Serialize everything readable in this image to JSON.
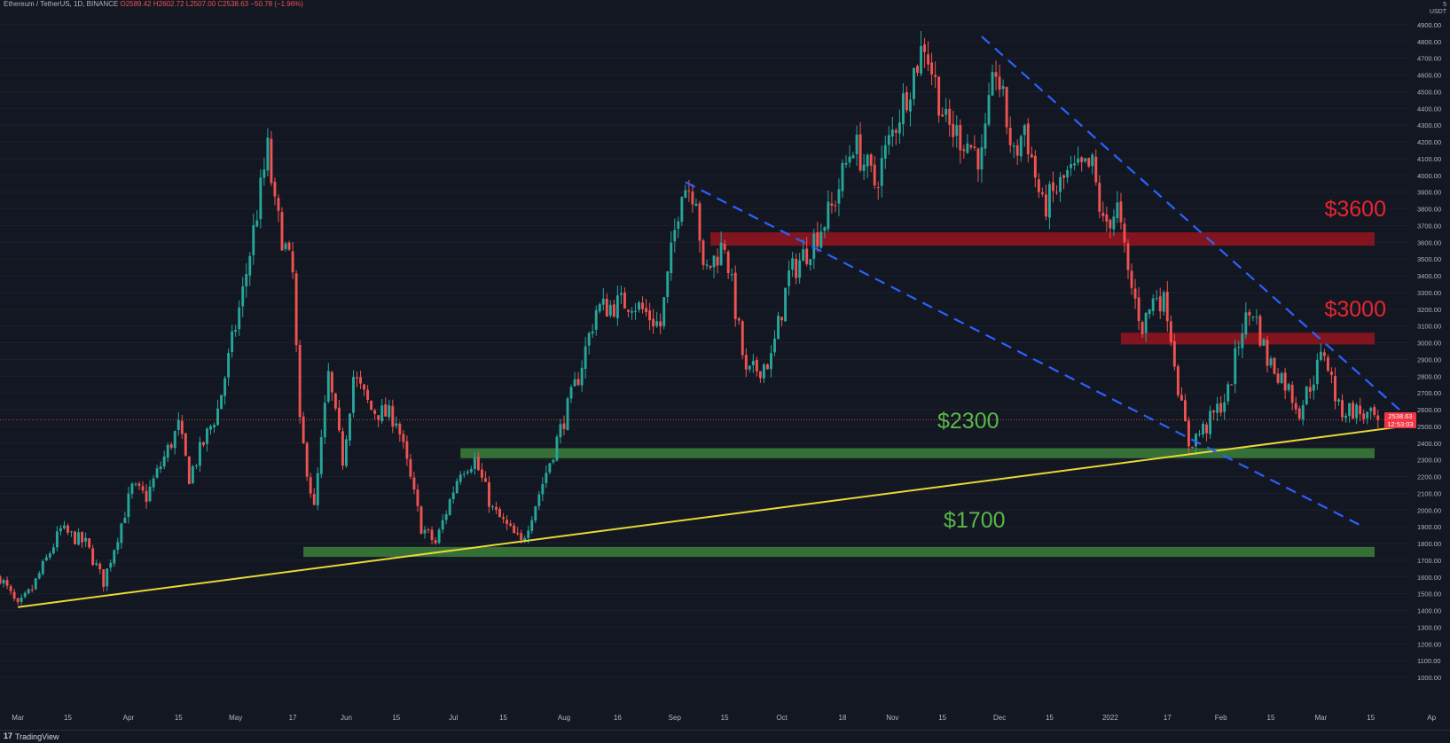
{
  "header": {
    "symbol": "Ethereum / TetherUS, 1D, BINANCE",
    "open": "O2589.42",
    "high": "H2602.72",
    "low": "L2507.00",
    "close": "C2538.63",
    "change": "−50.78 (−1.96%)"
  },
  "axis_top": {
    "icon": "5",
    "unit": "USDT"
  },
  "current_price": {
    "value": "2538.63",
    "countdown": "12:53:03"
  },
  "footer": {
    "logo": "17",
    "brand": "TradingView"
  },
  "colors": {
    "background": "#131722",
    "up": "#26a69a",
    "down": "#ef5350",
    "support_zone": "#3a7a3a",
    "resistance_zone": "#8b1520",
    "trendline": "#e8d837",
    "channel": "#2962ff"
  },
  "chart_data": {
    "type": "candlestick",
    "y_axis": {
      "min": 1000,
      "max": 4900,
      "step": 100,
      "tick_labels": [
        "4900.00",
        "4800.00",
        "4700.00",
        "4600.00",
        "4500.00",
        "4400.00",
        "4300.00",
        "4200.00",
        "4100.00",
        "4000.00",
        "3900.00",
        "3800.00",
        "3700.00",
        "3600.00",
        "3500.00",
        "3400.00",
        "3300.00",
        "3200.00",
        "3100.00",
        "3000.00",
        "2900.00",
        "2800.00",
        "2700.00",
        "2600.00",
        "2500.00",
        "2400.00",
        "2300.00",
        "2200.00",
        "2100.00",
        "2000.00",
        "1900.00",
        "1800.00",
        "1700.00",
        "1600.00",
        "1500.00",
        "1400.00",
        "1300.00",
        "1200.00",
        "1100.00",
        "1000.00"
      ]
    },
    "x_axis": {
      "range": [
        "2021-02-24",
        "2022-03-26"
      ],
      "tick_labels": [
        {
          "date": "2021-03-01",
          "label": "Mar"
        },
        {
          "date": "2021-03-15",
          "label": "15"
        },
        {
          "date": "2021-04-01",
          "label": "Apr"
        },
        {
          "date": "2021-04-15",
          "label": "15"
        },
        {
          "date": "2021-05-01",
          "label": "May"
        },
        {
          "date": "2021-05-17",
          "label": "17"
        },
        {
          "date": "2021-06-01",
          "label": "Jun"
        },
        {
          "date": "2021-06-15",
          "label": "15"
        },
        {
          "date": "2021-07-01",
          "label": "Jul"
        },
        {
          "date": "2021-07-15",
          "label": "15"
        },
        {
          "date": "2021-08-01",
          "label": "Aug"
        },
        {
          "date": "2021-08-16",
          "label": "16"
        },
        {
          "date": "2021-09-01",
          "label": "Sep"
        },
        {
          "date": "2021-09-15",
          "label": "15"
        },
        {
          "date": "2021-10-01",
          "label": "Oct"
        },
        {
          "date": "2021-10-18",
          "label": "18"
        },
        {
          "date": "2021-11-01",
          "label": "Nov"
        },
        {
          "date": "2021-11-15",
          "label": "15"
        },
        {
          "date": "2021-12-01",
          "label": "Dec"
        },
        {
          "date": "2021-12-15",
          "label": "15"
        },
        {
          "date": "2022-01-01",
          "label": "2022"
        },
        {
          "date": "2022-01-17",
          "label": "17"
        },
        {
          "date": "2022-02-01",
          "label": "Feb"
        },
        {
          "date": "2022-02-15",
          "label": "15"
        },
        {
          "date": "2022-03-01",
          "label": "Mar"
        },
        {
          "date": "2022-03-15",
          "label": "15"
        },
        {
          "date": "2022-04-01",
          "label": "Ap"
        }
      ]
    },
    "price_path": [
      [
        "2021-02-24",
        1600
      ],
      [
        "2021-03-01",
        1420
      ],
      [
        "2021-03-05",
        1530
      ],
      [
        "2021-03-13",
        1880
      ],
      [
        "2021-03-20",
        1800
      ],
      [
        "2021-03-25",
        1570
      ],
      [
        "2021-04-02",
        2130
      ],
      [
        "2021-04-06",
        2080
      ],
      [
        "2021-04-15",
        2500
      ],
      [
        "2021-04-18",
        2200
      ],
      [
        "2021-04-26",
        2600
      ],
      [
        "2021-05-03",
        3300
      ],
      [
        "2021-05-10",
        4150
      ],
      [
        "2021-05-12",
        3800
      ],
      [
        "2021-05-17",
        3400
      ],
      [
        "2021-05-19",
        2500
      ],
      [
        "2021-05-23",
        2000
      ],
      [
        "2021-05-27",
        2800
      ],
      [
        "2021-05-31",
        2300
      ],
      [
        "2021-06-03",
        2800
      ],
      [
        "2021-06-08",
        2600
      ],
      [
        "2021-06-15",
        2550
      ],
      [
        "2021-06-22",
        1900
      ],
      [
        "2021-06-26",
        1800
      ],
      [
        "2021-07-03",
        2250
      ],
      [
        "2021-07-07",
        2300
      ],
      [
        "2021-07-12",
        2000
      ],
      [
        "2021-07-20",
        1800
      ],
      [
        "2021-07-25",
        2100
      ],
      [
        "2021-08-05",
        2800
      ],
      [
        "2021-08-10",
        3200
      ],
      [
        "2021-08-20",
        3250
      ],
      [
        "2021-08-28",
        3100
      ],
      [
        "2021-09-03",
        3950
      ],
      [
        "2021-09-07",
        3900
      ],
      [
        "2021-09-09",
        3400
      ],
      [
        "2021-09-15",
        3600
      ],
      [
        "2021-09-21",
        2800
      ],
      [
        "2021-09-28",
        2900
      ],
      [
        "2021-10-03",
        3400
      ],
      [
        "2021-10-08",
        3550
      ],
      [
        "2021-10-15",
        3800
      ],
      [
        "2021-10-21",
        4200
      ],
      [
        "2021-10-27",
        3950
      ],
      [
        "2021-11-05",
        4500
      ],
      [
        "2021-11-10",
        4800
      ],
      [
        "2021-11-16",
        4300
      ],
      [
        "2021-11-22",
        4200
      ],
      [
        "2021-11-26",
        4100
      ],
      [
        "2021-11-30",
        4650
      ],
      [
        "2021-12-05",
        4100
      ],
      [
        "2021-12-08",
        4300
      ],
      [
        "2021-12-13",
        3800
      ],
      [
        "2021-12-20",
        4000
      ],
      [
        "2021-12-27",
        4050
      ],
      [
        "2021-12-30",
        3700
      ],
      [
        "2022-01-03",
        3800
      ],
      [
        "2022-01-06",
        3400
      ],
      [
        "2022-01-10",
        3100
      ],
      [
        "2022-01-14",
        3300
      ],
      [
        "2022-01-17",
        3200
      ],
      [
        "2022-01-21",
        2600
      ],
      [
        "2022-01-23",
        2400
      ],
      [
        "2022-01-28",
        2500
      ],
      [
        "2022-02-03",
        2700
      ],
      [
        "2022-02-07",
        3100
      ],
      [
        "2022-02-10",
        3200
      ],
      [
        "2022-02-14",
        2900
      ],
      [
        "2022-02-18",
        2800
      ],
      [
        "2022-02-23",
        2600
      ],
      [
        "2022-02-27",
        2800
      ],
      [
        "2022-03-02",
        2950
      ],
      [
        "2022-03-06",
        2600
      ],
      [
        "2022-03-10",
        2600
      ],
      [
        "2022-03-15",
        2550
      ],
      [
        "2022-03-17",
        2538.63
      ]
    ],
    "zones": [
      {
        "kind": "resistance",
        "label": "$3600",
        "low": 3580,
        "high": 3660,
        "start": "2021-09-11",
        "end": "2022-03-26"
      },
      {
        "kind": "resistance",
        "label": "$3000",
        "low": 2990,
        "high": 3060,
        "start": "2022-01-04",
        "end": "2022-03-26"
      },
      {
        "kind": "support",
        "label": "$2300",
        "low": 2310,
        "high": 2370,
        "start": "2021-07-03",
        "end": "2022-03-25"
      },
      {
        "kind": "support",
        "label": "$1700",
        "low": 1720,
        "high": 1780,
        "start": "2021-05-20",
        "end": "2022-03-25"
      }
    ],
    "trendlines": [
      {
        "kind": "support-trendline",
        "style": "solid",
        "from": [
          "2021-03-01",
          1420
        ],
        "to": [
          "2022-03-24",
          2500
        ]
      }
    ],
    "channel": [
      {
        "kind": "channel-upper",
        "style": "dashed",
        "from": [
          "2021-11-26",
          4830
        ],
        "to": [
          "2022-03-23",
          2600
        ]
      },
      {
        "kind": "channel-lower",
        "style": "dashed",
        "from": [
          "2021-09-04",
          3960
        ],
        "to": [
          "2022-03-12",
          1910
        ]
      }
    ]
  }
}
